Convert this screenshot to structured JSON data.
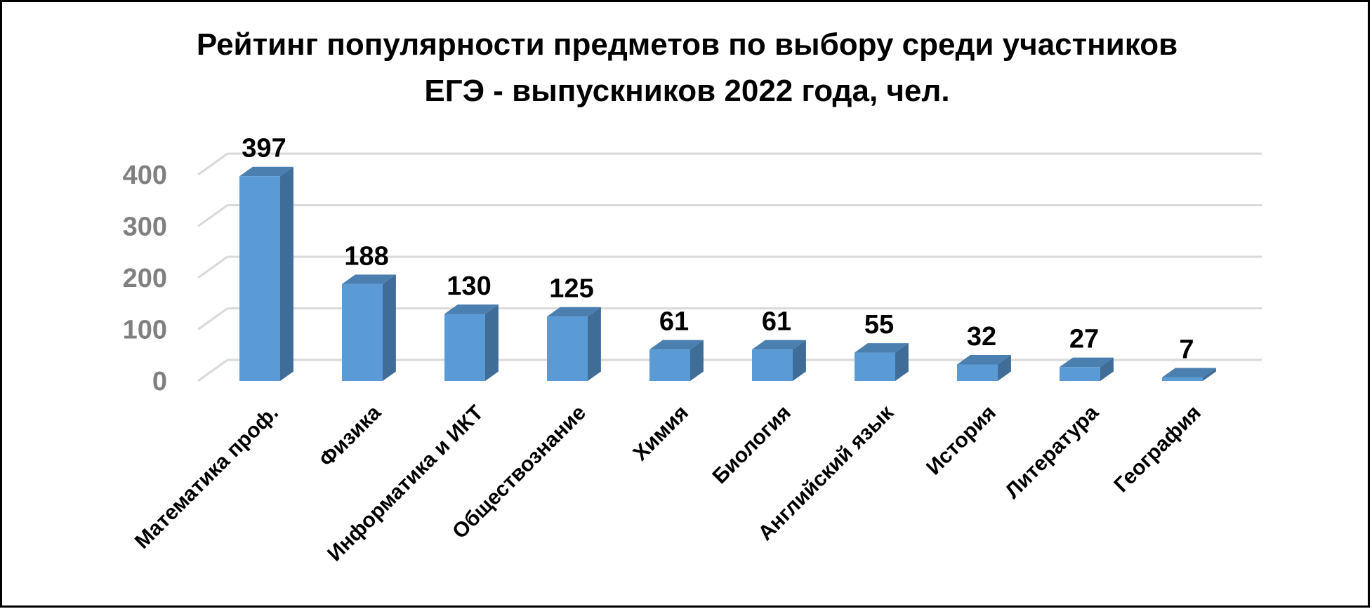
{
  "chart_data": {
    "type": "bar",
    "style": "3d-column",
    "title_lines": [
      "Рейтинг популярности предметов по выбору среди участников",
      "ЕГЭ - выпускников 2022 года, чел."
    ],
    "categories": [
      "Математика проф.",
      "Физика",
      "Информатика и ИКТ",
      "Обществознание",
      "Химия",
      "Биология",
      "Английский язык",
      "История",
      "Литература",
      "География"
    ],
    "values": [
      397,
      188,
      130,
      125,
      61,
      61,
      55,
      32,
      27,
      7
    ],
    "ylim": [
      0,
      400
    ],
    "yticks": [
      0,
      100,
      200,
      300,
      400
    ],
    "grid": true,
    "legend": "none",
    "colors": {
      "bar_front": "#5b9bd5",
      "bar_side": "#3f6d98",
      "bar_top": "#4a7fb0",
      "gridline": "#d9d9d9",
      "tick_text": "#808080",
      "frame": "#000000"
    }
  }
}
